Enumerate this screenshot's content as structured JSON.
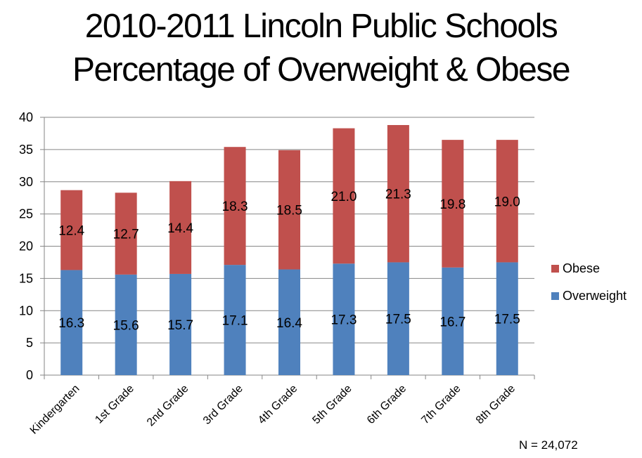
{
  "chart_data": {
    "type": "bar",
    "stacked": true,
    "title_line1": "2010-2011 Lincoln Public Schools",
    "title_line2": "Percentage of Overweight & Obese",
    "categories": [
      "Kindergarten",
      "1st Grade",
      "2nd Grade",
      "3rd Grade",
      "4th Grade",
      "5th Grade",
      "6th Grade",
      "7th Grade",
      "8th Grade"
    ],
    "series": [
      {
        "name": "Overweight",
        "color": "#4f81bd",
        "values": [
          16.3,
          15.6,
          15.7,
          17.1,
          16.4,
          17.3,
          17.5,
          16.7,
          17.5
        ],
        "labels": [
          "16.3",
          "15.6",
          "15.7",
          "17.1",
          "16.4",
          "17.3",
          "17.5",
          "16.7",
          "17.5"
        ]
      },
      {
        "name": "Obese",
        "color": "#c0504d",
        "values": [
          12.4,
          12.7,
          14.4,
          18.3,
          18.5,
          21.0,
          21.3,
          19.8,
          19.0
        ],
        "labels": [
          "12.4",
          "12.7",
          "14.4",
          "18.3",
          "18.5",
          "21.0",
          "21.3",
          "19.8",
          "19.0"
        ]
      }
    ],
    "ylim": [
      0,
      40
    ],
    "yticks": [
      "0",
      "5",
      "10",
      "15",
      "20",
      "25",
      "30",
      "35",
      "40"
    ],
    "grid": true,
    "legend_position": "right"
  },
  "note": "N = 24,072"
}
